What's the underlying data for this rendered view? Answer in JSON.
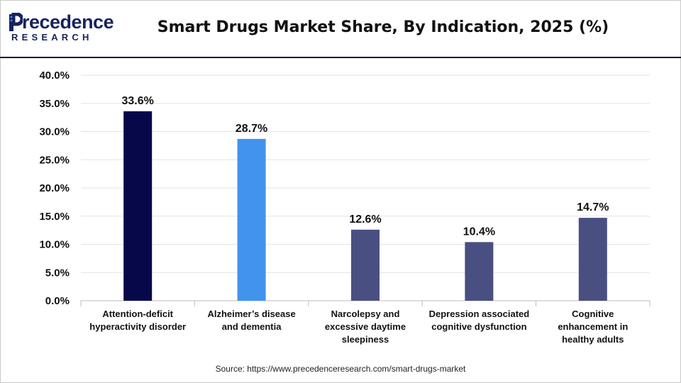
{
  "brand": {
    "logo_top": "recedence",
    "logo_mark": "P",
    "logo_bottom": "RESEARCH",
    "color": "#17235f"
  },
  "source_text": "Source: https://www.precedenceresearch.com/smart-drugs-market",
  "chart_data": {
    "type": "bar",
    "title": "Smart Drugs Market Share, By Indication, 2025 (%)",
    "xlabel": "",
    "ylabel": "",
    "ylim": [
      0,
      40
    ],
    "yticks": [
      "0.0%",
      "5.0%",
      "10.0%",
      "15.0%",
      "20.0%",
      "25.0%",
      "30.0%",
      "35.0%",
      "40.0%"
    ],
    "ytick_values": [
      0,
      5,
      10,
      15,
      20,
      25,
      30,
      35,
      40
    ],
    "grid": true,
    "categories": [
      [
        "Attention-deficit",
        "hyperactivity disorder"
      ],
      [
        "Alzheimer’s disease",
        "and dementia"
      ],
      [
        "Narcolepsy and",
        "excessive daytime",
        "sleepiness"
      ],
      [
        "Depression associated",
        "cognitive dysfunction"
      ],
      [
        "Cognitive",
        "enhancement in",
        "healthy adults"
      ]
    ],
    "values": [
      33.6,
      28.7,
      12.6,
      10.4,
      14.7
    ],
    "data_labels": [
      "33.6%",
      "28.7%",
      "12.6%",
      "10.4%",
      "14.7%"
    ],
    "colors": [
      "#06084a",
      "#4293ee",
      "#4a4f82",
      "#4a4f82",
      "#4a4f82"
    ]
  }
}
